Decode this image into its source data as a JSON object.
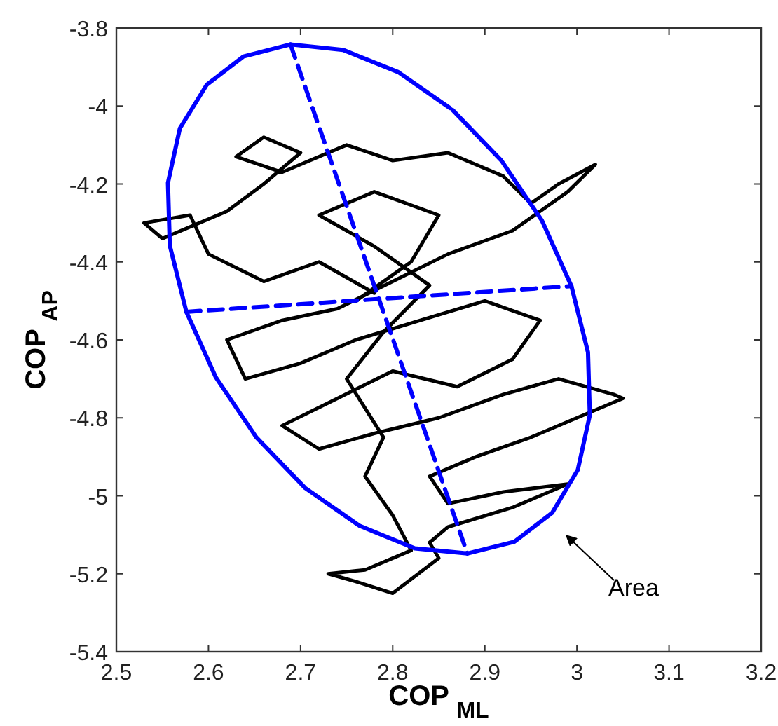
{
  "chart_data": {
    "type": "line",
    "xlabel": "COP $_{ML}$",
    "ylabel": "COP $_{AP}$",
    "xlim": [
      2.5,
      3.2
    ],
    "xticks": [
      2.5,
      2.6,
      2.7,
      2.8,
      2.9,
      3,
      3.1,
      3.2
    ],
    "ylim": [
      -5.4,
      -3.8
    ],
    "yticks": [
      -5.4,
      -5.2,
      -5,
      -4.8,
      -4.6,
      -4.4,
      -4.2,
      -4,
      -3.8
    ],
    "grid": false,
    "marker": "none",
    "series": [
      {
        "color": "#000000",
        "line_style": "solid",
        "x": [
          2.78,
          2.72,
          2.66,
          2.6,
          2.58,
          2.53,
          2.55,
          2.62,
          2.66,
          2.7,
          2.66,
          2.63,
          2.68,
          2.75,
          2.8,
          2.86,
          2.92,
          2.95,
          2.98,
          3.02,
          2.99,
          2.93,
          2.86,
          2.8,
          2.74,
          2.68,
          2.62,
          2.64,
          2.7,
          2.76,
          2.83,
          2.9,
          2.96,
          2.93,
          2.87,
          2.8,
          2.74,
          2.68,
          2.72,
          2.78,
          2.85,
          2.92,
          2.98,
          3.04,
          3.05,
          3,
          2.95,
          2.89,
          2.84,
          2.86,
          2.92,
          2.99,
          2.93,
          2.86,
          2.84,
          2.85,
          2.8,
          2.76,
          2.73,
          2.77,
          2.82,
          2.8,
          2.77,
          2.79,
          2.75,
          2.79,
          2.84,
          2.78,
          2.72,
          2.78,
          2.85,
          2.82,
          2.76
        ],
        "values": [
          -4.48,
          -4.4,
          -4.45,
          -4.38,
          -4.28,
          -4.3,
          -4.34,
          -4.27,
          -4.2,
          -4.12,
          -4.08,
          -4.13,
          -4.17,
          -4.1,
          -4.14,
          -4.12,
          -4.18,
          -4.25,
          -4.2,
          -4.15,
          -4.22,
          -4.32,
          -4.38,
          -4.45,
          -4.52,
          -4.55,
          -4.6,
          -4.7,
          -4.66,
          -4.6,
          -4.55,
          -4.5,
          -4.55,
          -4.65,
          -4.72,
          -4.68,
          -4.75,
          -4.82,
          -4.88,
          -4.84,
          -4.8,
          -4.74,
          -4.7,
          -4.74,
          -4.75,
          -4.8,
          -4.85,
          -4.9,
          -4.95,
          -5.02,
          -4.99,
          -4.97,
          -5.03,
          -5.08,
          -5.12,
          -5.16,
          -5.25,
          -5.22,
          -5.2,
          -5.19,
          -5.14,
          -5.05,
          -4.95,
          -4.85,
          -4.7,
          -4.58,
          -4.46,
          -4.36,
          -4.28,
          -4.22,
          -4.28,
          -4.4,
          -4.5
        ]
      },
      {
        "type": "line",
        "color": "#0000ff",
        "line_style": "solid",
        "x": [
          2.865,
          2.918,
          2.962,
          2.994,
          3.012,
          3.014,
          3.001,
          2.973,
          2.932,
          2.881,
          2.824,
          2.764,
          2.705,
          2.652,
          2.608,
          2.576,
          2.558,
          2.556,
          2.569,
          2.598,
          2.638,
          2.689,
          2.746,
          2.806,
          2.862
        ],
        "values": [
          -4.01,
          -4.14,
          -4.294,
          -4.462,
          -4.632,
          -4.793,
          -4.933,
          -5.044,
          -5.118,
          -5.148,
          -5.135,
          -5.077,
          -4.98,
          -4.85,
          -4.696,
          -4.528,
          -4.358,
          -4.197,
          -4.057,
          -3.946,
          -3.873,
          -3.842,
          -3.856,
          -3.913,
          -4.005
        ]
      },
      {
        "type": "line",
        "color": "#0000ff",
        "line_style": "dashed",
        "x": [
          2.689,
          2.881
        ],
        "values": [
          -3.842,
          -5.148
        ]
      },
      {
        "type": "line",
        "color": "#0000ff",
        "line_style": "dashed",
        "x": [
          2.576,
          2.994
        ],
        "values": [
          -4.528,
          -4.462
        ]
      }
    ],
    "annotations": [
      "Area"
    ]
  }
}
